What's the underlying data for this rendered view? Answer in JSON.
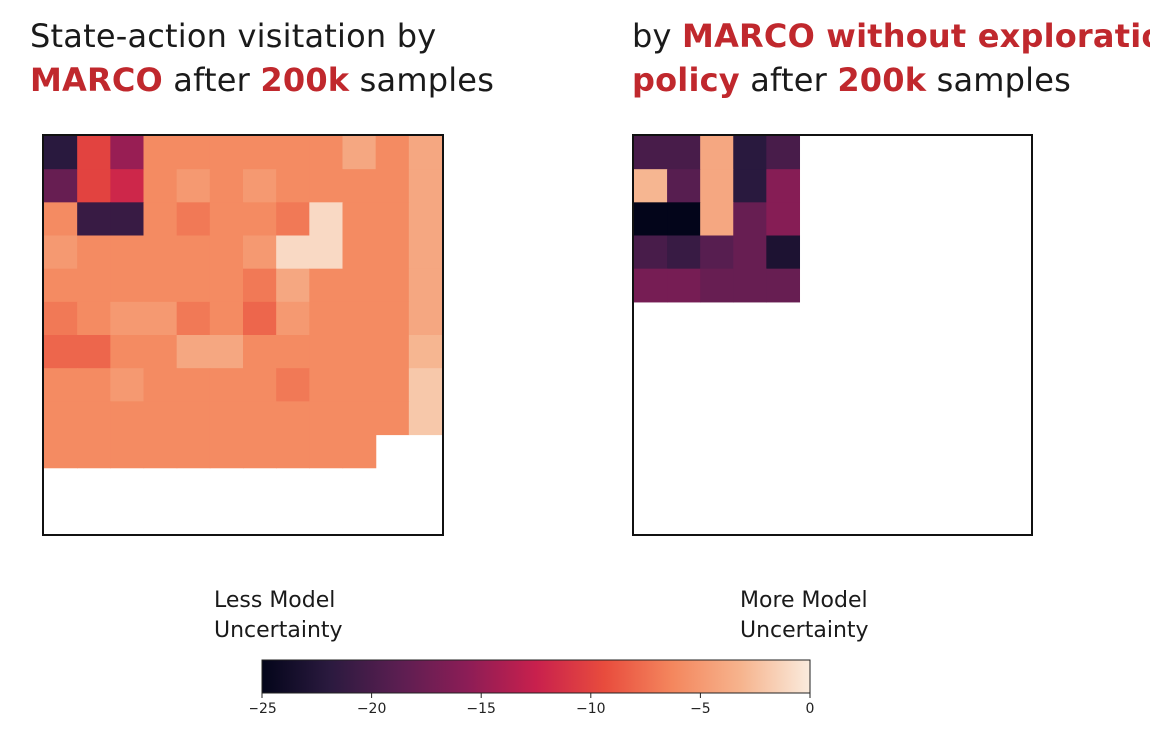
{
  "titles": {
    "left": {
      "line1": "State-action visitation by",
      "line2_highlight": "MARCO",
      "line2_mid": " after ",
      "line2_num": "200k",
      "line2_end": " samples"
    },
    "right": {
      "line1_pre": "by ",
      "line1_highlight": "MARCO without exploration",
      "line2_highlight": "policy",
      "line2_mid": " after ",
      "line2_num": "200k",
      "line2_end": " samples"
    }
  },
  "colors": {
    "highlight": "#c0282d",
    "colormap_stops": [
      "#03051a",
      "#2b1a3f",
      "#5b1e51",
      "#8c1d56",
      "#c8204d",
      "#e84c3d",
      "#f4875e",
      "#f6b48e",
      "#faebdd"
    ]
  },
  "colorbar": {
    "label_low_1": "Less Model",
    "label_low_2": "Uncertainty",
    "label_high_1": "More Model",
    "label_high_2": "Uncertainty",
    "ticks": [
      "−25",
      "−20",
      "−15",
      "−10",
      "−5",
      "0"
    ]
  },
  "chart_data": [
    {
      "type": "heatmap",
      "grid_size": 12,
      "vmin": -25,
      "vmax": 0,
      "values": [
        [
          -22,
          -10,
          -15,
          -6,
          -6,
          -6,
          -6,
          -6,
          -6,
          -4,
          -6,
          -4
        ],
        [
          -18,
          -10,
          -12,
          -6,
          -5,
          -6,
          -5,
          -6,
          -6,
          -6,
          -6,
          -4
        ],
        [
          -6,
          -21,
          -21,
          -6,
          -7,
          -6,
          -6,
          -7,
          -1,
          -6,
          -6,
          -4
        ],
        [
          -5,
          -6,
          -6,
          -6,
          -6,
          -6,
          -5,
          -1,
          -1,
          -6,
          -6,
          -4
        ],
        [
          -6,
          -6,
          -6,
          -6,
          -6,
          -6,
          -7,
          -4,
          -6,
          -6,
          -6,
          -4
        ],
        [
          -7,
          -6,
          -5,
          -5,
          -7,
          -6,
          -8,
          -5,
          -6,
          -6,
          -6,
          -4
        ],
        [
          -8,
          -8,
          -6,
          -6,
          -4,
          -4,
          -6,
          -6,
          -6,
          -6,
          -6,
          -3
        ],
        [
          -6,
          -6,
          -5,
          -6,
          -6,
          -6,
          -6,
          -7,
          -6,
          -6,
          -6,
          -2
        ],
        [
          -6,
          -6,
          -6,
          -6,
          -6,
          -6,
          -6,
          -6,
          -6,
          -6,
          -6,
          -2
        ],
        [
          -6,
          -6,
          -6,
          -6,
          -6,
          -6,
          -6,
          -6,
          -6,
          -6,
          null,
          null
        ],
        [
          null,
          null,
          null,
          null,
          null,
          null,
          null,
          null,
          null,
          null,
          null,
          null
        ],
        [
          null,
          null,
          null,
          null,
          null,
          null,
          null,
          null,
          null,
          null,
          null,
          null
        ]
      ]
    },
    {
      "type": "heatmap",
      "grid_size": 12,
      "vmin": -25,
      "vmax": 0,
      "values": [
        [
          -20,
          -20,
          -4,
          -22,
          -20,
          null,
          null,
          null,
          null,
          null,
          null,
          null
        ],
        [
          -3,
          -19,
          -4,
          -22,
          -16,
          null,
          null,
          null,
          null,
          null,
          null,
          null
        ],
        [
          -25,
          -25,
          -4,
          -18,
          -16,
          null,
          null,
          null,
          null,
          null,
          null,
          null
        ],
        [
          -20,
          -21,
          -19,
          -18,
          -23,
          null,
          null,
          null,
          null,
          null,
          null,
          null
        ],
        [
          -17,
          -17,
          -18,
          -18,
          -18,
          null,
          null,
          null,
          null,
          null,
          null,
          null
        ],
        [
          null,
          null,
          null,
          null,
          null,
          null,
          null,
          null,
          null,
          null,
          null,
          null
        ],
        [
          null,
          null,
          null,
          null,
          null,
          null,
          null,
          null,
          null,
          null,
          null,
          null
        ],
        [
          null,
          null,
          null,
          null,
          null,
          null,
          null,
          null,
          null,
          null,
          null,
          null
        ],
        [
          null,
          null,
          null,
          null,
          null,
          null,
          null,
          null,
          null,
          null,
          null,
          null
        ],
        [
          null,
          null,
          null,
          null,
          null,
          null,
          null,
          null,
          null,
          null,
          null,
          null
        ],
        [
          null,
          null,
          null,
          null,
          null,
          null,
          null,
          null,
          null,
          null,
          null,
          null
        ],
        [
          null,
          null,
          null,
          null,
          null,
          null,
          null,
          null,
          null,
          null,
          null,
          null
        ]
      ]
    }
  ]
}
